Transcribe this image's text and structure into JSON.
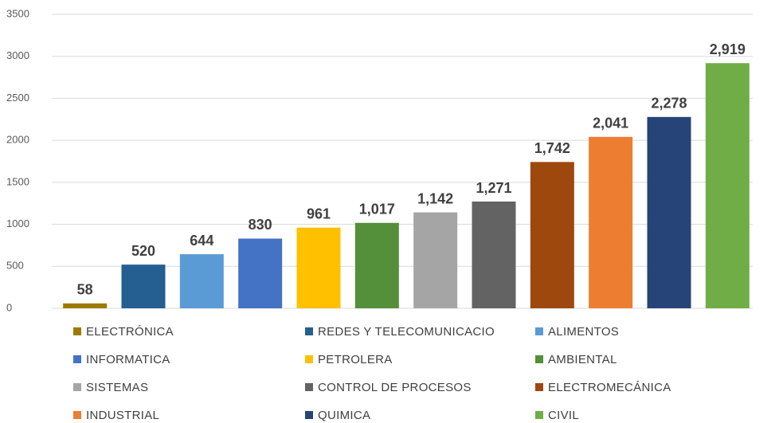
{
  "chart_data": {
    "type": "bar",
    "series": [
      {
        "name": "ELECTRÓNICA",
        "color": "#9c7a05",
        "values": [
          58
        ]
      },
      {
        "name": "REDES Y TELECOMUNICACIO",
        "color": "#255e91",
        "values": [
          520
        ]
      },
      {
        "name": "ALIMENTOS",
        "color": "#5b9bd5",
        "values": [
          644
        ]
      },
      {
        "name": "INFORMATICA",
        "color": "#4472c4",
        "values": [
          830
        ]
      },
      {
        "name": "PETROLERA",
        "color": "#ffc000",
        "values": [
          961
        ]
      },
      {
        "name": "AMBIENTAL",
        "color": "#548f3a",
        "values": [
          1017
        ],
        "value_labels": [
          "1,017"
        ]
      },
      {
        "name": "SISTEMAS",
        "color": "#a5a5a5",
        "values": [
          1142
        ],
        "value_labels": [
          "1,142"
        ]
      },
      {
        "name": "CONTROL DE PROCESOS",
        "color": "#636363",
        "values": [
          1271
        ],
        "value_labels": [
          "1,271"
        ]
      },
      {
        "name": "ELECTROMECÁNICA",
        "color": "#9e480e",
        "values": [
          1742
        ],
        "value_labels": [
          "1,742"
        ]
      },
      {
        "name": "INDUSTRIAL",
        "color": "#ed7d31",
        "values": [
          2041
        ],
        "value_labels": [
          "2,041"
        ]
      },
      {
        "name": "QUIMICA",
        "color": "#264478",
        "values": [
          2278
        ],
        "value_labels": [
          "2,278"
        ]
      },
      {
        "name": "CIVIL",
        "color": "#70ad47",
        "values": [
          2919
        ],
        "value_labels": [
          "2,919"
        ]
      }
    ],
    "ylim": [
      0,
      3500
    ],
    "yticks": [
      0,
      500,
      1000,
      1500,
      2000,
      2500,
      3000,
      3500
    ],
    "grid": true,
    "legend": "bottom"
  }
}
